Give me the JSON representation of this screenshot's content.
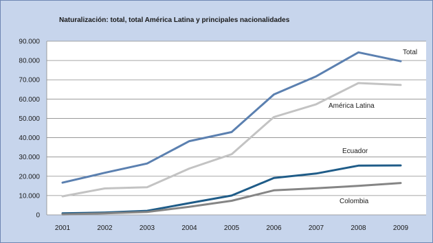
{
  "chart_data": {
    "type": "line",
    "title": "Naturalización: total, total América Latina y principales nacionalidades",
    "xlabel": "",
    "ylabel": "",
    "x": [
      "2001",
      "2002",
      "2003",
      "2004",
      "2005",
      "2006",
      "2007",
      "2008",
      "2009"
    ],
    "ylim": [
      0,
      90000
    ],
    "yticks": [
      "0",
      "10.000",
      "20.000",
      "30.000",
      "40.000",
      "50.000",
      "60.000",
      "70.000",
      "80.000",
      "90.000"
    ],
    "grid": "horizontal",
    "series": [
      {
        "name": "Total",
        "color": "#5b80b0",
        "values": [
          16700,
          21800,
          26600,
          38200,
          42900,
          62400,
          71800,
          84200,
          79600
        ]
      },
      {
        "name": "América Latina",
        "color": "#c3c3c3",
        "values": [
          9600,
          13700,
          14300,
          24000,
          31400,
          50700,
          57300,
          68300,
          67300
        ]
      },
      {
        "name": "Ecuador",
        "color": "#1f5c88",
        "values": [
          800,
          1200,
          2100,
          6100,
          10000,
          19100,
          21400,
          25500,
          25600
        ]
      },
      {
        "name": "Colombia",
        "color": "#858585",
        "values": [
          300,
          800,
          1500,
          4200,
          7300,
          12700,
          13800,
          15000,
          16500
        ]
      }
    ]
  }
}
